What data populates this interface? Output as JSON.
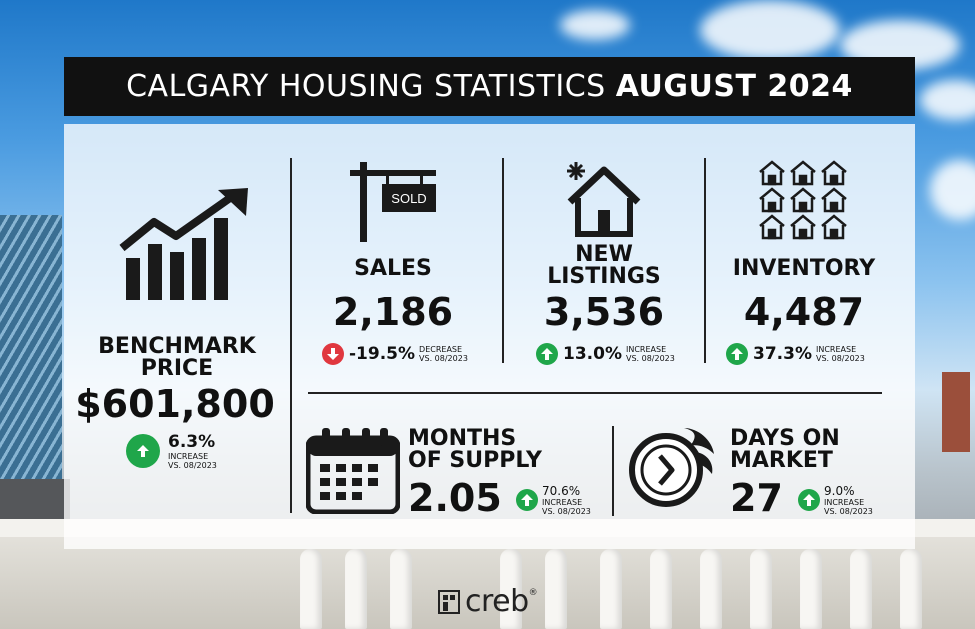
{
  "header": {
    "title_main": "CALGARY HOUSING STATISTICS",
    "title_bold": "AUGUST 2024"
  },
  "benchmark": {
    "label": "BENCHMARK PRICE",
    "value": "$601,800",
    "pct": "6.3%",
    "dir_word": "INCREASE",
    "vs": "VS. 08/2023"
  },
  "sales": {
    "sign_text": "SOLD",
    "label": "SALES",
    "value": "2,186",
    "pct": "-19.5%",
    "dir_word": "DECREASE",
    "vs": "VS. 08/2023"
  },
  "new_listings": {
    "label_line1": "NEW",
    "label_line2": "LISTINGS",
    "value": "3,536",
    "pct": "13.0%",
    "dir_word": "INCREASE",
    "vs": "VS. 08/2023"
  },
  "inventory": {
    "label": "INVENTORY",
    "value": "4,487",
    "pct": "37.3%",
    "dir_word": "INCREASE",
    "vs": "VS. 08/2023"
  },
  "months_supply": {
    "label_line1": "MONTHS",
    "label_line2": "OF SUPPLY",
    "value": "2.05",
    "pct": "70.6%",
    "dir_word": "INCREASE",
    "vs": "VS. 08/2023"
  },
  "days_market": {
    "label_line1": "DAYS ON",
    "label_line2": "MARKET",
    "value": "27",
    "pct": "9.0%",
    "dir_word": "INCREASE",
    "vs": "VS. 08/2023"
  },
  "footer": {
    "brand": "creb",
    "reg": "®"
  },
  "colors": {
    "increase": "#1fa64a",
    "decrease": "#e0373f",
    "title_bg": "#111111"
  }
}
